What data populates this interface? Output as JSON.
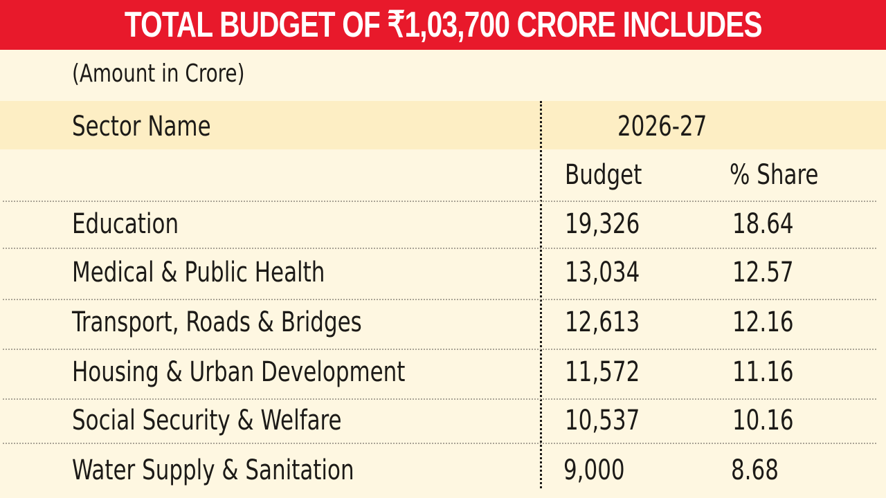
{
  "title": "TOTAL BUDGET OF ₹1,03,700 CRORE INCLUDES",
  "unit_note": "(Amount in Crore)",
  "colors": {
    "banner": "#e8192b",
    "background": "#fef7e1",
    "header_band": "#fdeec4"
  },
  "table": {
    "col_sector": "Sector Name",
    "year": "2026-27",
    "col_budget": "Budget",
    "col_share": "% Share",
    "rows": [
      {
        "sector": "Education",
        "budget": "19,326",
        "share": "18.64"
      },
      {
        "sector": "Medical & Public Health",
        "budget": "13,034",
        "share": "12.57"
      },
      {
        "sector": "Transport, Roads & Bridges",
        "budget": "12,613",
        "share": "12.16"
      },
      {
        "sector": "Housing & Urban Development",
        "budget": "11,572",
        "share": "11.16"
      },
      {
        "sector": "Social Security & Welfare",
        "budget": "10,537",
        "share": "10.16"
      },
      {
        "sector": "Water Supply & Sanitation",
        "budget": "9,000",
        "share": "8.68"
      }
    ]
  },
  "chart_data": {
    "type": "table",
    "title": "TOTAL BUDGET OF ₹1,03,700 CRORE INCLUDES",
    "subtitle": "(Amount in Crore)",
    "columns": [
      "Sector Name",
      "2026-27 Budget",
      "2026-27 % Share"
    ],
    "categories": [
      "Education",
      "Medical & Public Health",
      "Transport, Roads & Bridges",
      "Housing & Urban Development",
      "Social Security & Welfare",
      "Water Supply & Sanitation"
    ],
    "series": [
      {
        "name": "Budget",
        "values": [
          19326,
          13034,
          12613,
          11572,
          10537,
          9000
        ]
      },
      {
        "name": "% Share",
        "values": [
          18.64,
          12.57,
          12.16,
          11.16,
          10.16,
          8.68
        ]
      }
    ]
  }
}
